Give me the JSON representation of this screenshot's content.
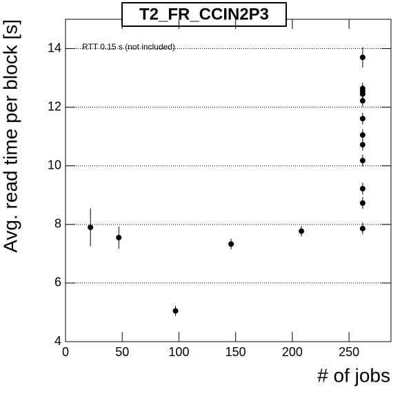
{
  "chart_data": {
    "type": "scatter",
    "title": "T2_FR_CCIN2P3",
    "xlabel": "# of jobs",
    "ylabel": "Avg. read time per block [s]",
    "annotation": "RTT 0.15 s (not included)",
    "color": "#000000",
    "x": [
      22,
      47,
      97,
      146,
      208,
      262,
      262,
      262,
      262,
      262,
      262,
      262,
      262,
      262,
      262,
      262,
      262
    ],
    "values": [
      7.9,
      7.55,
      5.05,
      7.33,
      7.77,
      13.7,
      12.64,
      12.55,
      12.45,
      12.22,
      11.61,
      11.05,
      10.72,
      10.18,
      9.22,
      8.73,
      7.86
    ],
    "errors": [
      0.65,
      0.38,
      0.17,
      0.18,
      0.18,
      0.35,
      0.2,
      0.2,
      0.2,
      0.2,
      0.2,
      0.2,
      0.2,
      0.2,
      0.2,
      0.2,
      0.2
    ],
    "xlim": [
      0,
      287
    ],
    "ylim": [
      4,
      15
    ],
    "xticks": [
      0,
      50,
      100,
      150,
      200,
      250
    ],
    "yticks": [
      4,
      6,
      8,
      10,
      12,
      14
    ],
    "grid": true
  }
}
